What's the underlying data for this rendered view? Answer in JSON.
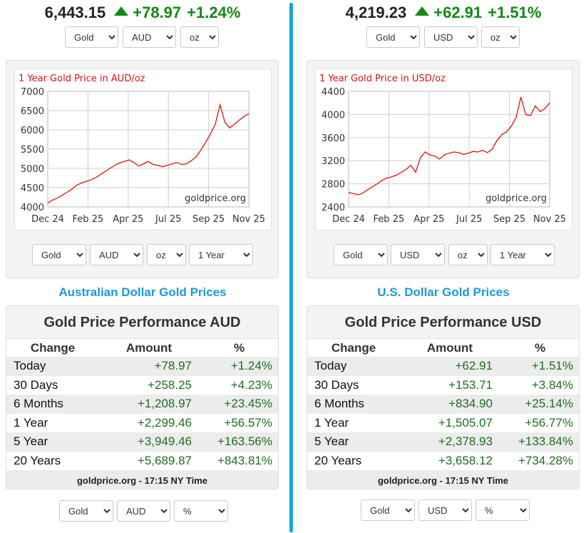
{
  "colors": {
    "up": "#128a12",
    "accent": "#1aa3dd",
    "line": "#e01010"
  },
  "left": {
    "price": "6,443.15",
    "change": "+78.97",
    "change_pct": "+1.24%",
    "top_selects": {
      "metal": "Gold",
      "currency": "AUD",
      "unit": "oz"
    },
    "chart_data": {
      "type": "line",
      "title": "1 Year Gold Price in AUD/oz",
      "watermark": "goldprice.org",
      "ylim": [
        4000,
        7000
      ],
      "yticks": [
        "7000",
        "6500",
        "6000",
        "5500",
        "5000",
        "4500",
        "4000"
      ],
      "xticks": [
        "Dec 24",
        "Feb 25",
        "Apr 25",
        "Jul 25",
        "Sep 25",
        "Nov 25"
      ],
      "series": [
        {
          "name": "Gold AUD",
          "values": [
            4100,
            4180,
            4230,
            4300,
            4380,
            4460,
            4560,
            4620,
            4660,
            4700,
            4760,
            4840,
            4920,
            5000,
            5080,
            5140,
            5180,
            5220,
            5150,
            5060,
            5120,
            5180,
            5100,
            5080,
            5040,
            5080,
            5120,
            5150,
            5100,
            5120,
            5200,
            5300,
            5480,
            5680,
            5900,
            6150,
            6650,
            6200,
            6050,
            6150,
            6250,
            6350,
            6420
          ]
        }
      ]
    },
    "chart_selects": {
      "metal": "Gold",
      "currency": "AUD",
      "unit": "oz",
      "range": "1 Year"
    },
    "section_title": "Australian Dollar Gold Prices",
    "perf": {
      "title": "Gold Price Performance AUD",
      "headers": [
        "Change",
        "Amount",
        "%"
      ],
      "rows": [
        [
          "Today",
          "+78.97",
          "+1.24%"
        ],
        [
          "30 Days",
          "+258.25",
          "+4.23%"
        ],
        [
          "6 Months",
          "+1,208.97",
          "+23.45%"
        ],
        [
          "1 Year",
          "+2,299.46",
          "+56.57%"
        ],
        [
          "5 Year",
          "+3,949.46",
          "+163.56%"
        ],
        [
          "20 Years",
          "+5,689.87",
          "+843.81%"
        ]
      ],
      "footer": "goldprice.org - 17:15 NY Time"
    },
    "bottom_selects": {
      "metal": "Gold",
      "currency": "AUD",
      "unit": "%"
    }
  },
  "right": {
    "price": "4,219.23",
    "change": "+62.91",
    "change_pct": "+1.51%",
    "top_selects": {
      "metal": "Gold",
      "currency": "USD",
      "unit": "oz"
    },
    "chart_data": {
      "type": "line",
      "title": "1 Year Gold Price in USD/oz",
      "watermark": "goldprice.org",
      "ylim": [
        2400,
        4400
      ],
      "yticks": [
        "4400",
        "4000",
        "3600",
        "3200",
        "2800",
        "2400"
      ],
      "xticks": [
        "Dec 24",
        "Feb 25",
        "Apr 25",
        "Jul 25",
        "Sep 25",
        "Nov 25"
      ],
      "series": [
        {
          "name": "Gold USD",
          "values": [
            2650,
            2630,
            2610,
            2640,
            2700,
            2750,
            2800,
            2860,
            2900,
            2920,
            2950,
            3000,
            3050,
            3120,
            3000,
            3250,
            3350,
            3300,
            3280,
            3230,
            3300,
            3330,
            3350,
            3340,
            3310,
            3330,
            3360,
            3350,
            3380,
            3340,
            3400,
            3550,
            3650,
            3700,
            3800,
            3950,
            4300,
            4000,
            3980,
            4150,
            4050,
            4100,
            4200
          ]
        }
      ]
    },
    "chart_selects": {
      "metal": "Gold",
      "currency": "USD",
      "unit": "oz",
      "range": "1 Year"
    },
    "section_title": "U.S. Dollar Gold Prices",
    "perf": {
      "title": "Gold Price Performance USD",
      "headers": [
        "Change",
        "Amount",
        "%"
      ],
      "rows": [
        [
          "Today",
          "+62.91",
          "+1.51%"
        ],
        [
          "30 Days",
          "+153.71",
          "+3.84%"
        ],
        [
          "6 Months",
          "+834.90",
          "+25.14%"
        ],
        [
          "1 Year",
          "+1,505.07",
          "+56.77%"
        ],
        [
          "5 Year",
          "+2,378.93",
          "+133.84%"
        ],
        [
          "20 Years",
          "+3,658.12",
          "+734.28%"
        ]
      ],
      "footer": "goldprice.org - 17:15 NY Time"
    },
    "bottom_selects": {
      "metal": "Gold",
      "currency": "USD",
      "unit": "%"
    }
  }
}
